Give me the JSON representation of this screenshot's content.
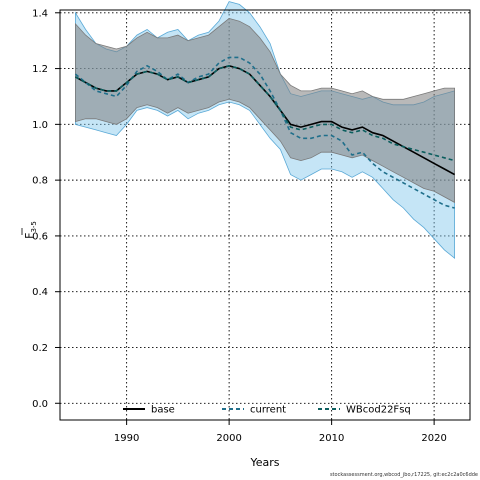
{
  "chart_data": {
    "type": "line",
    "title": "",
    "xlabel": "Years",
    "ylabel": "F",
    "ylabel_subscript": "3-5",
    "xlim": [
      1983.5,
      2023.5
    ],
    "ylim": [
      -0.06,
      1.41
    ],
    "xticks": [
      1990,
      2000,
      2010,
      2020
    ],
    "yticks": [
      0.0,
      0.2,
      0.4,
      0.6,
      0.8,
      1.0,
      1.2,
      1.4
    ],
    "grid": true,
    "legend_position": "bottom",
    "legend": [
      {
        "name": "base",
        "style": "solid",
        "color": "#000000"
      },
      {
        "name": "current",
        "style": "dashed",
        "color": "#1f6f8b"
      },
      {
        "name": "WBcod22Fsq",
        "style": "dashed",
        "color": "#0b5e5e"
      }
    ],
    "bands": [
      {
        "color": "#7fc6ec",
        "opacity": 0.45,
        "stroke": "#5aa9d6",
        "x": [
          1985,
          1986,
          1987,
          1988,
          1989,
          1990,
          1991,
          1992,
          1993,
          1994,
          1995,
          1996,
          1997,
          1998,
          1999,
          2000,
          2001,
          2002,
          2003,
          2004,
          2005,
          2006,
          2007,
          2008,
          2009,
          2010,
          2011,
          2012,
          2013,
          2014,
          2015,
          2016,
          2017,
          2018,
          2019,
          2020,
          2021,
          2022
        ],
        "upper": [
          1.4,
          1.34,
          1.29,
          1.27,
          1.26,
          1.28,
          1.32,
          1.34,
          1.31,
          1.33,
          1.34,
          1.3,
          1.32,
          1.33,
          1.37,
          1.44,
          1.43,
          1.4,
          1.35,
          1.29,
          1.18,
          1.11,
          1.1,
          1.11,
          1.12,
          1.12,
          1.11,
          1.1,
          1.09,
          1.1,
          1.08,
          1.07,
          1.07,
          1.07,
          1.08,
          1.1,
          1.11,
          1.12
        ],
        "lower": [
          1.0,
          0.99,
          0.98,
          0.97,
          0.96,
          1.0,
          1.05,
          1.06,
          1.05,
          1.03,
          1.05,
          1.02,
          1.04,
          1.05,
          1.07,
          1.08,
          1.07,
          1.05,
          1.0,
          0.95,
          0.91,
          0.82,
          0.8,
          0.82,
          0.84,
          0.84,
          0.83,
          0.81,
          0.83,
          0.81,
          0.77,
          0.73,
          0.7,
          0.66,
          0.63,
          0.59,
          0.55,
          0.52
        ]
      },
      {
        "color": "#808080",
        "opacity": 0.55,
        "stroke": "#7a7a7a",
        "x": [
          1985,
          1986,
          1987,
          1988,
          1989,
          1990,
          1991,
          1992,
          1993,
          1994,
          1995,
          1996,
          1997,
          1998,
          1999,
          2000,
          2001,
          2002,
          2003,
          2004,
          2005,
          2006,
          2007,
          2008,
          2009,
          2010,
          2011,
          2012,
          2013,
          2014,
          2015,
          2016,
          2017,
          2018,
          2019,
          2020,
          2021,
          2022
        ],
        "upper": [
          1.36,
          1.32,
          1.29,
          1.28,
          1.27,
          1.28,
          1.31,
          1.33,
          1.31,
          1.31,
          1.32,
          1.3,
          1.31,
          1.32,
          1.35,
          1.38,
          1.37,
          1.35,
          1.31,
          1.26,
          1.18,
          1.14,
          1.12,
          1.12,
          1.13,
          1.13,
          1.12,
          1.11,
          1.12,
          1.1,
          1.09,
          1.09,
          1.09,
          1.1,
          1.11,
          1.12,
          1.13,
          1.13
        ],
        "lower": [
          1.01,
          1.02,
          1.02,
          1.01,
          1.0,
          1.02,
          1.06,
          1.07,
          1.06,
          1.04,
          1.06,
          1.04,
          1.05,
          1.06,
          1.08,
          1.09,
          1.08,
          1.06,
          1.02,
          0.98,
          0.94,
          0.88,
          0.87,
          0.88,
          0.9,
          0.9,
          0.89,
          0.88,
          0.89,
          0.87,
          0.85,
          0.83,
          0.81,
          0.79,
          0.77,
          0.76,
          0.74,
          0.72
        ]
      }
    ],
    "series": [
      {
        "name": "base",
        "style": "solid",
        "color": "#000000",
        "x": [
          1985,
          1986,
          1987,
          1988,
          1989,
          1990,
          1991,
          1992,
          1993,
          1994,
          1995,
          1996,
          1997,
          1998,
          1999,
          2000,
          2001,
          2002,
          2003,
          2004,
          2005,
          2006,
          2007,
          2008,
          2009,
          2010,
          2011,
          2012,
          2013,
          2014,
          2015,
          2016,
          2017,
          2018,
          2019,
          2020,
          2021,
          2022
        ],
        "values": [
          1.17,
          1.15,
          1.13,
          1.12,
          1.12,
          1.15,
          1.18,
          1.19,
          1.18,
          1.16,
          1.17,
          1.15,
          1.16,
          1.17,
          1.2,
          1.21,
          1.2,
          1.18,
          1.14,
          1.1,
          1.05,
          1.0,
          0.99,
          1.0,
          1.01,
          1.01,
          0.99,
          0.98,
          0.99,
          0.97,
          0.96,
          0.94,
          0.92,
          0.9,
          0.88,
          0.86,
          0.84,
          0.82
        ]
      },
      {
        "name": "current",
        "style": "dashed",
        "color": "#1f6f8b",
        "x": [
          1985,
          1986,
          1987,
          1988,
          1989,
          1990,
          1991,
          1992,
          1993,
          1994,
          1995,
          1996,
          1997,
          1998,
          1999,
          2000,
          2001,
          2002,
          2003,
          2004,
          2005,
          2006,
          2007,
          2008,
          2009,
          2010,
          2011,
          2012,
          2013,
          2014,
          2015,
          2016,
          2017,
          2018,
          2019,
          2020,
          2021,
          2022
        ],
        "values": [
          1.18,
          1.15,
          1.12,
          1.11,
          1.1,
          1.14,
          1.19,
          1.21,
          1.19,
          1.16,
          1.18,
          1.15,
          1.17,
          1.18,
          1.22,
          1.24,
          1.24,
          1.22,
          1.18,
          1.12,
          1.05,
          0.97,
          0.95,
          0.95,
          0.96,
          0.96,
          0.94,
          0.89,
          0.9,
          0.86,
          0.83,
          0.81,
          0.79,
          0.77,
          0.75,
          0.73,
          0.71,
          0.7
        ]
      },
      {
        "name": "WBcod22Fsq",
        "style": "dashed",
        "color": "#0b5e5e",
        "x": [
          1985,
          1986,
          1987,
          1988,
          1989,
          1990,
          1991,
          1992,
          1993,
          1994,
          1995,
          1996,
          1997,
          1998,
          1999,
          2000,
          2001,
          2002,
          2003,
          2004,
          2005,
          2006,
          2007,
          2008,
          2009,
          2010,
          2011,
          2012,
          2013,
          2014,
          2015,
          2016,
          2017,
          2018,
          2019,
          2020,
          2021,
          2022
        ],
        "values": [
          1.17,
          1.15,
          1.13,
          1.12,
          1.12,
          1.15,
          1.18,
          1.19,
          1.18,
          1.16,
          1.17,
          1.15,
          1.16,
          1.17,
          1.2,
          1.21,
          1.2,
          1.18,
          1.14,
          1.1,
          1.05,
          0.99,
          0.98,
          0.99,
          1.0,
          1.0,
          0.98,
          0.97,
          0.98,
          0.96,
          0.95,
          0.93,
          0.92,
          0.91,
          0.9,
          0.89,
          0.88,
          0.87
        ]
      }
    ]
  },
  "footer": {
    "credit": "stockassessment.org,wbcod_jbo,r17225, git:ec2c2a0c6dde"
  }
}
